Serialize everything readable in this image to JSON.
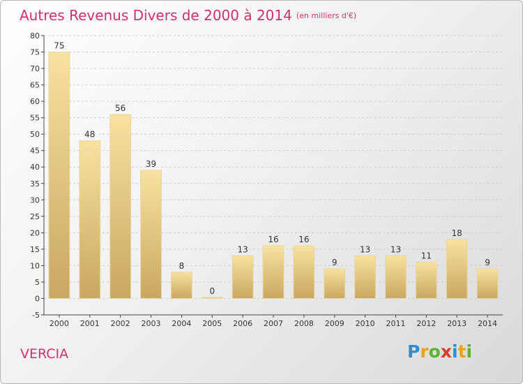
{
  "header": {
    "title": "Autres Revenus Divers de 2000 à 2014",
    "subtitle": "(en milliers d'€)"
  },
  "commune": "VERCIA",
  "logo": {
    "text": "Proxiti",
    "letters": [
      {
        "ch": "P",
        "color": "#2a8fd4"
      },
      {
        "ch": "r",
        "color": "#e9a21d"
      },
      {
        "ch": "o",
        "color": "#5bb431"
      },
      {
        "ch": "x",
        "color": "#d93b2b"
      },
      {
        "ch": "i",
        "color": "#2a8fd4"
      },
      {
        "ch": "t",
        "color": "#e9a21d"
      },
      {
        "ch": "i",
        "color": "#5bb431"
      }
    ]
  },
  "chart_data": {
    "type": "bar",
    "categories": [
      "2000",
      "2001",
      "2002",
      "2003",
      "2004",
      "2005",
      "2006",
      "2007",
      "2008",
      "2009",
      "2010",
      "2011",
      "2012",
      "2013",
      "2014"
    ],
    "values": [
      75,
      48,
      56,
      39,
      8,
      0,
      13,
      16,
      16,
      9,
      13,
      13,
      11,
      18,
      9
    ],
    "data_labels": [
      "75",
      "48",
      "56",
      "39",
      "8",
      "0",
      "13",
      "16",
      "16",
      "9",
      "13",
      "13",
      "11",
      "18",
      "9"
    ],
    "title": "Autres Revenus Divers de 2000 à 2014",
    "subtitle": "(en milliers d'€)",
    "xlabel": "",
    "ylabel": "",
    "ylim": [
      -5,
      80
    ],
    "yticks": [
      -5,
      0,
      5,
      10,
      15,
      20,
      25,
      30,
      35,
      40,
      45,
      50,
      55,
      60,
      65,
      70,
      75,
      80
    ],
    "grid": true,
    "bar_color_top": "#f8e29f",
    "bar_color_bottom": "#c9a760",
    "title_color": "#d22f6e"
  }
}
